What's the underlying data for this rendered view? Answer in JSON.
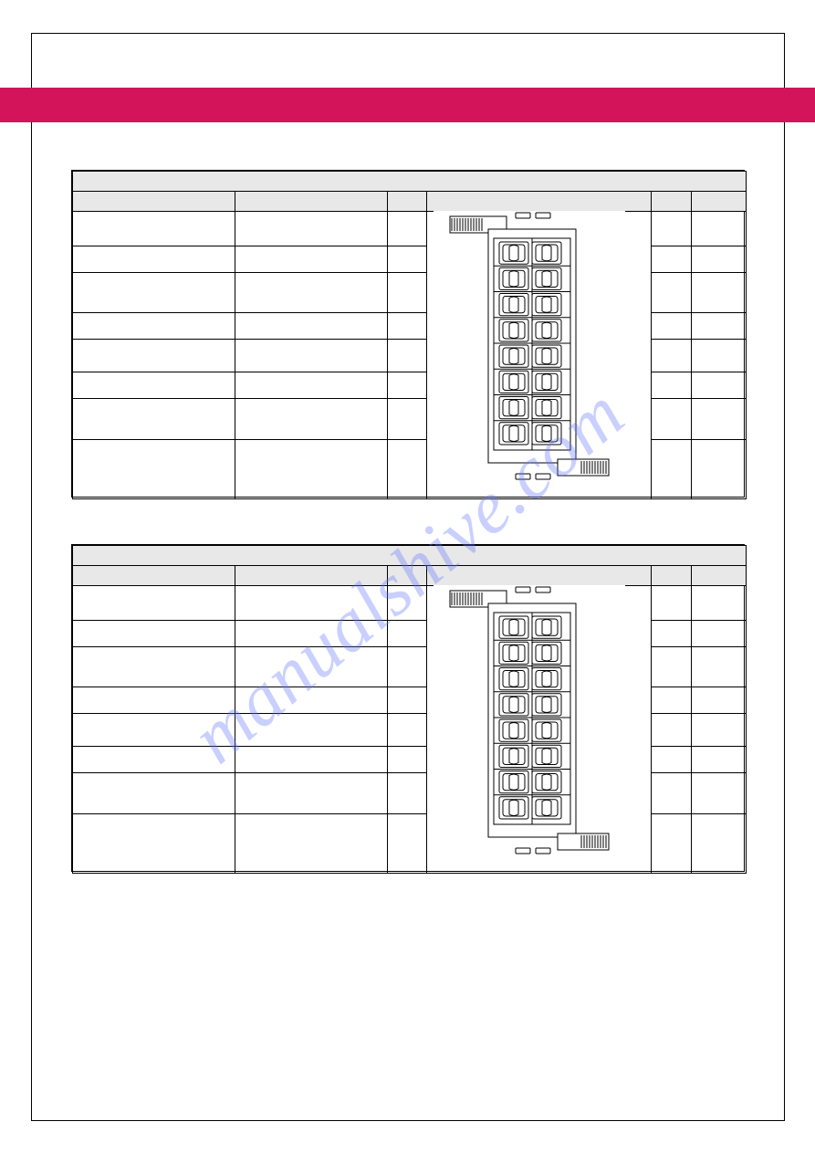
{
  "colors": {
    "accent": "#d4145a",
    "page_bg": "#ffffff",
    "border": "#000000",
    "header_bg": "#e8e8e8",
    "watermark": "rgba(100,120,255,0.35)"
  },
  "watermark_text": "manualshive.com",
  "tables": [
    {
      "title": "",
      "columns": [
        "",
        "",
        "",
        "",
        "",
        ""
      ],
      "rows": [
        [
          "",
          "",
          "",
          "",
          ""
        ],
        [
          "",
          "",
          "",
          "",
          ""
        ],
        [
          "",
          "",
          "",
          "",
          ""
        ],
        [
          "",
          "",
          "",
          "",
          ""
        ],
        [
          "",
          "",
          "",
          "",
          ""
        ],
        [
          "",
          "",
          "",
          "",
          ""
        ],
        [
          "",
          "",
          "",
          "",
          ""
        ],
        [
          "",
          "",
          "",
          "",
          ""
        ]
      ],
      "connector": {
        "pin_rows": 8,
        "pin_cols": 2,
        "body_color": "#ffffff",
        "stroke": "#000000"
      }
    },
    {
      "title": "",
      "columns": [
        "",
        "",
        "",
        "",
        "",
        ""
      ],
      "rows": [
        [
          "",
          "",
          "",
          "",
          ""
        ],
        [
          "",
          "",
          "",
          "",
          ""
        ],
        [
          "",
          "",
          "",
          "",
          ""
        ],
        [
          "",
          "",
          "",
          "",
          ""
        ],
        [
          "",
          "",
          "",
          "",
          ""
        ],
        [
          "",
          "",
          "",
          "",
          ""
        ],
        [
          "",
          "",
          "",
          "",
          ""
        ],
        [
          "",
          "",
          "",
          "",
          ""
        ]
      ],
      "connector": {
        "pin_rows": 8,
        "pin_cols": 2,
        "body_color": "#ffffff",
        "stroke": "#000000"
      }
    }
  ]
}
